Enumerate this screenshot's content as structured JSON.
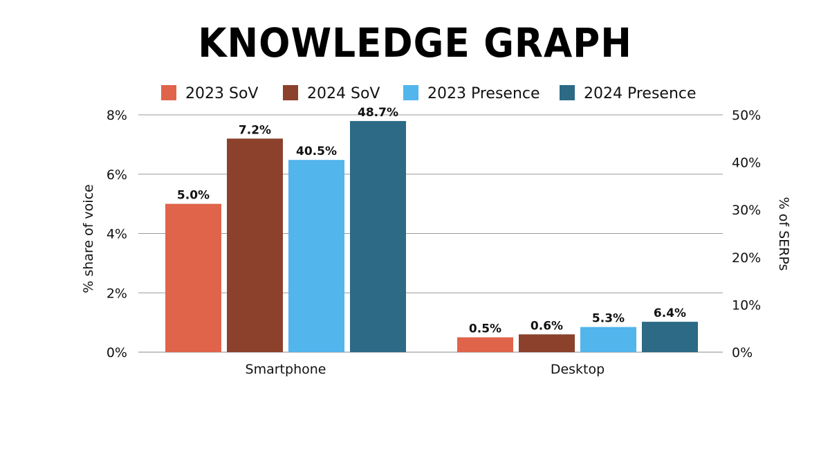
{
  "chart_data": {
    "type": "bar",
    "title": "KNOWLEDGE GRAPH",
    "categories": [
      "Smartphone",
      "Desktop"
    ],
    "series": [
      {
        "name": "2023 SoV",
        "values": [
          5.0,
          0.5
        ],
        "axis": "left",
        "labels": [
          "5.0%",
          "0.5%"
        ],
        "color": "#E0644A"
      },
      {
        "name": "2024 SoV",
        "values": [
          7.2,
          0.6
        ],
        "axis": "left",
        "labels": [
          "7.2%",
          "0.6%"
        ],
        "color": "#8B412B"
      },
      {
        "name": "2023 Presence",
        "values": [
          40.5,
          5.3
        ],
        "axis": "right",
        "labels": [
          "40.5%",
          "5.3%"
        ],
        "color": "#52B5EC"
      },
      {
        "name": "2024 Presence",
        "values": [
          48.7,
          6.4
        ],
        "axis": "right",
        "labels": [
          "48.7%",
          "6.4%"
        ],
        "color": "#2C6A86"
      }
    ],
    "ylabel": "% share of voice",
    "ylim": [
      0,
      8
    ],
    "yticks": [
      "0%",
      "2%",
      "4%",
      "6%",
      "8%"
    ],
    "y2label": "% of SERPs",
    "y2lim": [
      0,
      50
    ],
    "y2ticks": [
      "0%",
      "10%",
      "20%",
      "30%",
      "40%",
      "50%"
    ],
    "grid": true,
    "legend": "top"
  }
}
